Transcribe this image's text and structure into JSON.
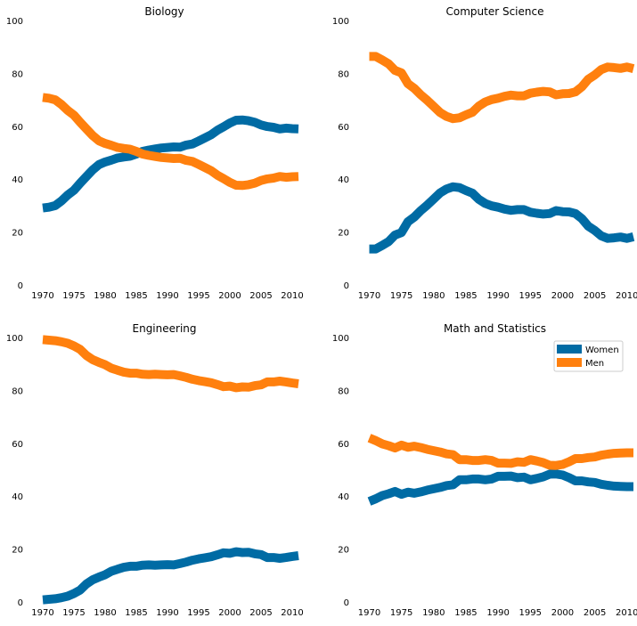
{
  "colors": {
    "women": "#006BA4",
    "men": "#FF800E"
  },
  "legend": {
    "items": [
      {
        "label": "Women",
        "color": "#006BA4"
      },
      {
        "label": "Men",
        "color": "#FF800E"
      }
    ],
    "placement": "upper-right of Math and Statistics panel"
  },
  "chart_data": [
    {
      "type": "line",
      "title": "Biology",
      "xlim": [
        1968,
        2011
      ],
      "ylim": [
        0,
        100
      ],
      "xticks": [
        1970,
        1975,
        1980,
        1985,
        1990,
        1995,
        2000,
        2005,
        2010
      ],
      "yticks": [
        0,
        20,
        40,
        60,
        80,
        100
      ],
      "x": [
        1970,
        1971,
        1972,
        1973,
        1974,
        1975,
        1976,
        1977,
        1978,
        1979,
        1980,
        1981,
        1982,
        1983,
        1984,
        1985,
        1986,
        1987,
        1988,
        1989,
        1990,
        1991,
        1992,
        1993,
        1994,
        1995,
        1996,
        1997,
        1998,
        1999,
        2000,
        2001,
        2002,
        2003,
        2004,
        2005,
        2006,
        2007,
        2008,
        2009,
        2010,
        2011
      ],
      "series": [
        {
          "name": "Women",
          "values": [
            29.1,
            29.4,
            30,
            31.8,
            34,
            35.8,
            38.5,
            41,
            43.5,
            45.5,
            46.5,
            47.2,
            48,
            48.4,
            48.7,
            49.5,
            50.5,
            51,
            51.4,
            51.8,
            52,
            52.2,
            52.1,
            52.9,
            53.3,
            54.4,
            55.6,
            56.8,
            58.5,
            59.8,
            61.2,
            62.3,
            62.4,
            62.1,
            61.5,
            60.5,
            59.9,
            59.6,
            59,
            59.3,
            59.1,
            59
          ]
        },
        {
          "name": "Men",
          "values": [
            70.9,
            70.6,
            70,
            68.2,
            66,
            64.2,
            61.5,
            59,
            56.5,
            54.5,
            53.5,
            52.8,
            52,
            51.6,
            51.3,
            50.5,
            49.5,
            49,
            48.6,
            48.2,
            48,
            47.8,
            47.9,
            47.1,
            46.7,
            45.6,
            44.4,
            43.2,
            41.5,
            40.2,
            38.8,
            37.7,
            37.6,
            37.9,
            38.5,
            39.5,
            40.1,
            40.4,
            41,
            40.7,
            40.9,
            41
          ]
        }
      ]
    },
    {
      "type": "line",
      "title": "Computer Science",
      "xlim": [
        1968,
        2011
      ],
      "ylim": [
        0,
        100
      ],
      "xticks": [
        1970,
        1975,
        1980,
        1985,
        1990,
        1995,
        2000,
        2005,
        2010
      ],
      "yticks": [
        0,
        20,
        40,
        60,
        80,
        100
      ],
      "x": [
        1970,
        1971,
        1972,
        1973,
        1974,
        1975,
        1976,
        1977,
        1978,
        1979,
        1980,
        1981,
        1982,
        1983,
        1984,
        1985,
        1986,
        1987,
        1988,
        1989,
        1990,
        1991,
        1992,
        1993,
        1994,
        1995,
        1996,
        1997,
        1998,
        1999,
        2000,
        2001,
        2002,
        2003,
        2004,
        2005,
        2006,
        2007,
        2008,
        2009,
        2010,
        2011
      ],
      "series": [
        {
          "name": "Women",
          "values": [
            13.6,
            13.6,
            14.9,
            16.4,
            18.9,
            19.8,
            23.9,
            25.7,
            28.1,
            30.2,
            32.5,
            34.8,
            36.3,
            37.1,
            36.8,
            35.7,
            34.7,
            32.4,
            30.8,
            29.9,
            29.4,
            28.7,
            28.2,
            28.5,
            28.5,
            27.5,
            27.1,
            26.8,
            27,
            28.1,
            27.7,
            27.6,
            27,
            25.1,
            22.2,
            20.6,
            18.6,
            17.6,
            17.8,
            18.1,
            17.6,
            18.2
          ]
        },
        {
          "name": "Men",
          "values": [
            86.4,
            86.4,
            85.1,
            83.6,
            81.1,
            80.2,
            76.1,
            74.3,
            71.9,
            69.8,
            67.5,
            65.2,
            63.7,
            62.9,
            63.2,
            64.3,
            65.3,
            67.6,
            69.2,
            70.1,
            70.6,
            71.3,
            71.8,
            71.5,
            71.5,
            72.5,
            72.9,
            73.2,
            73,
            71.9,
            72.3,
            72.4,
            73,
            74.9,
            77.8,
            79.4,
            81.4,
            82.4,
            82.2,
            81.9,
            82.4,
            81.8
          ]
        }
      ]
    },
    {
      "type": "line",
      "title": "Engineering",
      "xlim": [
        1968,
        2011
      ],
      "ylim": [
        0,
        100
      ],
      "xticks": [
        1970,
        1975,
        1980,
        1985,
        1990,
        1995,
        2000,
        2005,
        2010
      ],
      "yticks": [
        0,
        20,
        40,
        60,
        80,
        100
      ],
      "x": [
        1970,
        1971,
        1972,
        1973,
        1974,
        1975,
        1976,
        1977,
        1978,
        1979,
        1980,
        1981,
        1982,
        1983,
        1984,
        1985,
        1986,
        1987,
        1988,
        1989,
        1990,
        1991,
        1992,
        1993,
        1994,
        1995,
        1996,
        1997,
        1998,
        1999,
        2000,
        2001,
        2002,
        2003,
        2004,
        2005,
        2006,
        2007,
        2008,
        2009,
        2010,
        2011
      ],
      "series": [
        {
          "name": "Women",
          "values": [
            0.8,
            1.0,
            1.2,
            1.6,
            2.2,
            3.2,
            4.5,
            6.8,
            8.4,
            9.4,
            10.3,
            11.6,
            12.4,
            13.1,
            13.5,
            13.5,
            13.9,
            14,
            13.9,
            14,
            14.1,
            14,
            14.5,
            15.1,
            15.8,
            16.3,
            16.7,
            17.1,
            17.8,
            18.6,
            18.4,
            19.0,
            18.7,
            18.8,
            18.2,
            17.9,
            16.8,
            16.8,
            16.5,
            16.8,
            17.2,
            17.5
          ]
        },
        {
          "name": "Men",
          "values": [
            99.2,
            99,
            98.8,
            98.4,
            97.8,
            96.8,
            95.5,
            93.2,
            91.6,
            90.6,
            89.7,
            88.4,
            87.6,
            86.9,
            86.5,
            86.5,
            86.1,
            86,
            86.1,
            86,
            85.9,
            86,
            85.5,
            84.9,
            84.2,
            83.7,
            83.3,
            82.9,
            82.2,
            81.4,
            81.6,
            81,
            81.3,
            81.2,
            81.8,
            82.1,
            83.2,
            83.2,
            83.5,
            83.2,
            82.8,
            82.5
          ]
        }
      ]
    },
    {
      "type": "line",
      "title": "Math and Statistics",
      "xlim": [
        1968,
        2011
      ],
      "ylim": [
        0,
        100
      ],
      "xticks": [
        1970,
        1975,
        1980,
        1985,
        1990,
        1995,
        2000,
        2005,
        2010
      ],
      "yticks": [
        0,
        20,
        40,
        60,
        80,
        100
      ],
      "x": [
        1970,
        1971,
        1972,
        1973,
        1974,
        1975,
        1976,
        1977,
        1978,
        1979,
        1980,
        1981,
        1982,
        1983,
        1984,
        1985,
        1986,
        1987,
        1988,
        1989,
        1990,
        1991,
        1992,
        1993,
        1994,
        1995,
        1996,
        1997,
        1998,
        1999,
        2000,
        2001,
        2002,
        2003,
        2004,
        2005,
        2006,
        2007,
        2008,
        2009,
        2010,
        2011
      ],
      "series": [
        {
          "name": "Women",
          "values": [
            38,
            39,
            40.2,
            40.9,
            41.8,
            40.7,
            41.5,
            41.1,
            41.6,
            42.3,
            42.8,
            43.3,
            44,
            44.3,
            46.2,
            46.2,
            46.5,
            46.5,
            46.2,
            46.5,
            47.5,
            47.5,
            47.6,
            47,
            47.2,
            46.2,
            46.7,
            47.3,
            48.3,
            48.4,
            48,
            47,
            45.8,
            45.8,
            45.4,
            45.2,
            44.5,
            44.1,
            43.8,
            43.7,
            43.6,
            43.6
          ]
        },
        {
          "name": "Men",
          "values": [
            62,
            61,
            59.8,
            59.1,
            58.2,
            59.3,
            58.5,
            58.9,
            58.4,
            57.7,
            57.2,
            56.7,
            56,
            55.7,
            53.8,
            53.8,
            53.5,
            53.5,
            53.8,
            53.5,
            52.5,
            52.5,
            52.4,
            53,
            52.8,
            53.8,
            53.3,
            52.7,
            51.7,
            51.6,
            52,
            53,
            54.2,
            54.2,
            54.6,
            54.8,
            55.5,
            55.9,
            56.2,
            56.3,
            56.4,
            56.4
          ]
        }
      ]
    }
  ]
}
